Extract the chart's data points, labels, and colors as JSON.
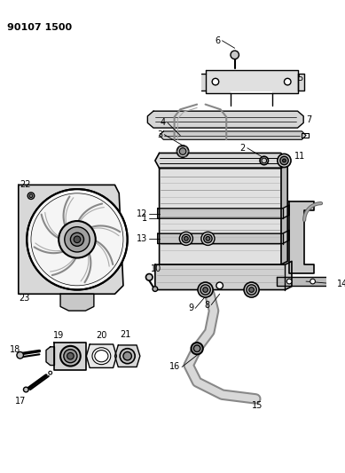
{
  "title": "90107 1500",
  "background_color": "#ffffff",
  "line_color": "#000000",
  "figsize": [
    3.89,
    5.33
  ],
  "dpi": 100
}
